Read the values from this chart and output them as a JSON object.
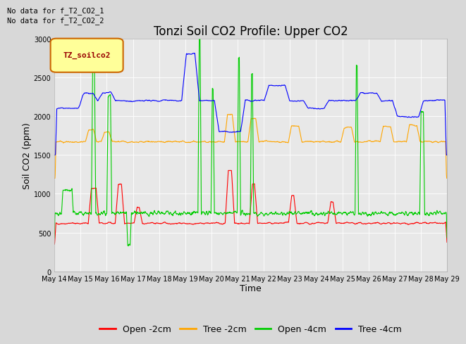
{
  "title": "Tonzi Soil CO2 Profile: Upper CO2",
  "xlabel": "Time",
  "ylabel": "Soil CO2 (ppm)",
  "ylim": [
    0,
    3000
  ],
  "legend_label": "TZ_soilco2",
  "no_data_text": [
    "No data for f_T2_CO2_1",
    "No data for f_T2_CO2_2"
  ],
  "series": {
    "open_2cm": {
      "label": "Open -2cm",
      "color": "#ff0000"
    },
    "tree_2cm": {
      "label": "Tree -2cm",
      "color": "#ffa500"
    },
    "open_4cm": {
      "label": "Open -4cm",
      "color": "#00cc00"
    },
    "tree_4cm": {
      "label": "Tree -4cm",
      "color": "#0000ff"
    }
  },
  "fig_bg_color": "#d8d8d8",
  "plot_bg_color": "#e8e8e8",
  "xtick_labels": [
    "May 14",
    "May 15",
    "May 16",
    "May 17",
    "May 18",
    "May 19",
    "May 20",
    "May 21",
    "May 22",
    "May 23",
    "May 24",
    "May 25",
    "May 26",
    "May 27",
    "May 28",
    "May 29"
  ],
  "ytick_labels": [
    "0",
    "500",
    "1000",
    "1500",
    "2000",
    "2500",
    "3000"
  ],
  "ytick_vals": [
    0,
    500,
    1000,
    1500,
    2000,
    2500,
    3000
  ],
  "title_fontsize": 12,
  "axis_label_fontsize": 9,
  "tick_fontsize": 7,
  "legend_fontsize": 9,
  "no_data_fontsize": 7.5
}
